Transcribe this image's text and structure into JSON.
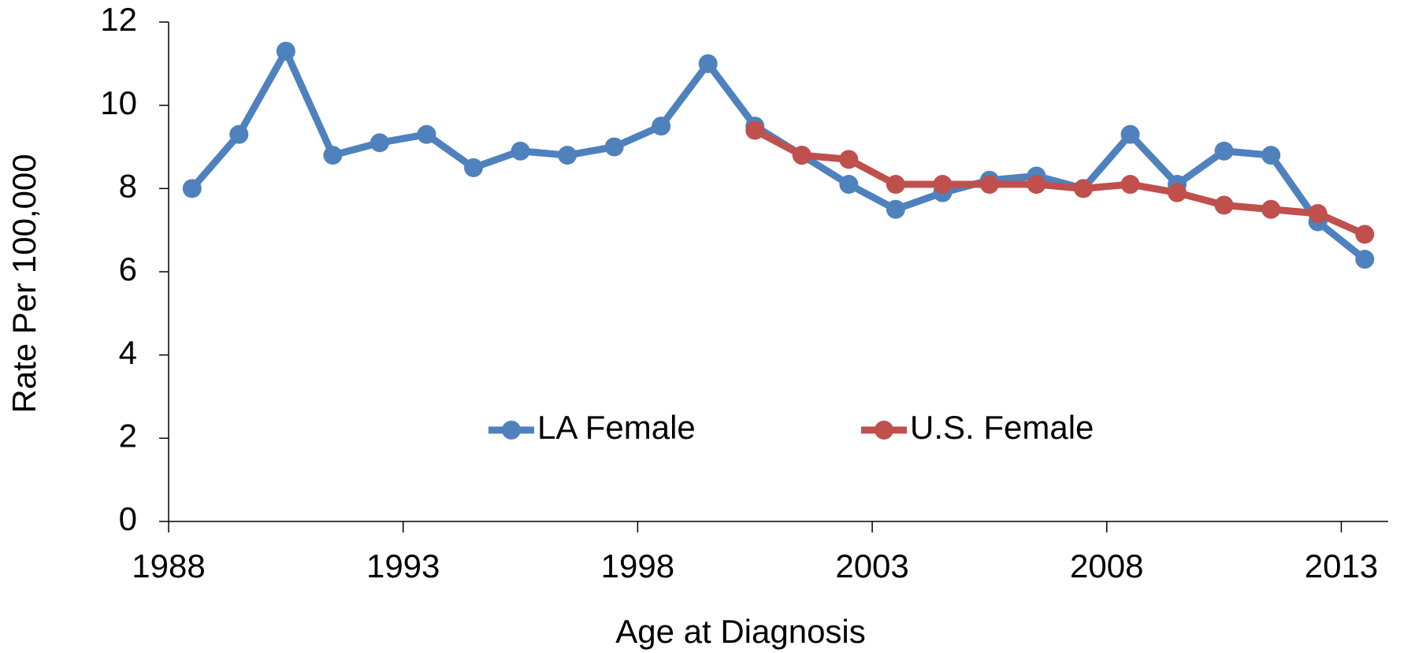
{
  "chart_data": {
    "type": "line",
    "x_label": "Age at Diagnosis",
    "y_label": "Rate Per 100,000",
    "categories": [
      "1988",
      null,
      null,
      null,
      null,
      "1993",
      null,
      null,
      null,
      null,
      "1998",
      null,
      null,
      null,
      null,
      "2003",
      null,
      null,
      null,
      null,
      "2008",
      null,
      null,
      null,
      null,
      "2013"
    ],
    "series": [
      {
        "name": "LA Female",
        "color": "#4f81bd",
        "values": [
          8.0,
          9.3,
          11.3,
          8.8,
          9.1,
          9.3,
          8.5,
          8.9,
          8.8,
          9.0,
          9.5,
          11.0,
          9.5,
          8.8,
          8.1,
          7.5,
          7.9,
          8.2,
          8.3,
          8.0,
          9.3,
          8.1,
          8.9,
          8.8,
          7.2,
          6.3
        ]
      },
      {
        "name": "U.S. Female",
        "color": "#c0504d",
        "values": [
          null,
          null,
          null,
          null,
          null,
          null,
          null,
          null,
          null,
          null,
          null,
          null,
          9.4,
          8.8,
          8.7,
          8.1,
          8.1,
          8.1,
          8.1,
          8.0,
          8.1,
          7.9,
          7.6,
          7.5,
          7.4,
          6.9
        ]
      }
    ],
    "ylim": [
      0,
      12
    ],
    "yticks": [
      0,
      2,
      4,
      6,
      8,
      10,
      12
    ],
    "legend": "inside-bottom-center"
  }
}
